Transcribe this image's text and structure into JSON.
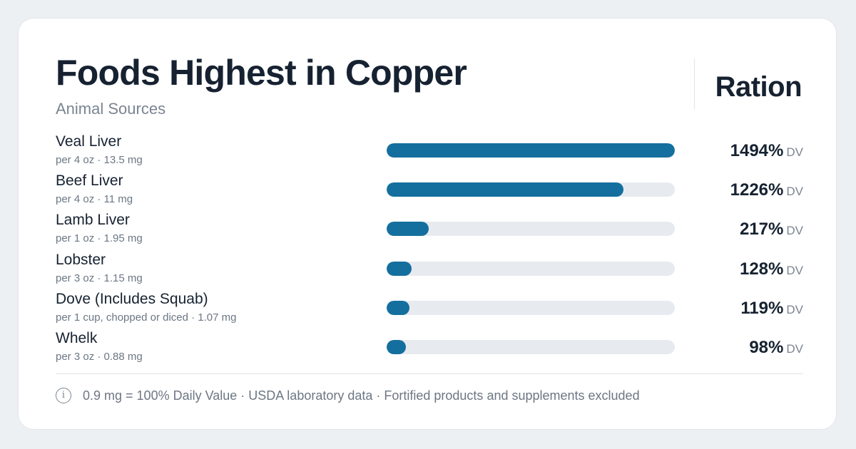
{
  "header": {
    "title": "Foods Highest in Copper",
    "subtitle": "Animal Sources",
    "brand": "Ration"
  },
  "chart_data": {
    "type": "bar",
    "orientation": "horizontal",
    "title": "Foods Highest in Copper",
    "subtitle": "Animal Sources",
    "max_value": 1494,
    "value_unit": "DV",
    "categories": [
      "Veal Liver",
      "Beef Liver",
      "Lamb Liver",
      "Lobster",
      "Dove (Includes Squab)",
      "Whelk"
    ],
    "values": [
      1494,
      1226,
      217,
      128,
      119,
      98
    ],
    "rows": [
      {
        "name": "Veal Liver",
        "detail": "per 4 oz · 13.5 mg",
        "value": 1494,
        "label": "1494%"
      },
      {
        "name": "Beef Liver",
        "detail": "per 4 oz · 11 mg",
        "value": 1226,
        "label": "1226%"
      },
      {
        "name": "Lamb Liver",
        "detail": "per 1 oz · 1.95 mg",
        "value": 217,
        "label": "217%"
      },
      {
        "name": "Lobster",
        "detail": "per 3 oz · 1.15 mg",
        "value": 128,
        "label": "128%"
      },
      {
        "name": "Dove (Includes Squab)",
        "detail": "per 1 cup, chopped or diced · 1.07 mg",
        "value": 119,
        "label": "119%"
      },
      {
        "name": "Whelk",
        "detail": "per 3 oz · 0.88 mg",
        "value": 98,
        "label": "98%"
      }
    ],
    "bar_color": "#146f9e",
    "track_color": "#e7ebf0"
  },
  "footer": {
    "icon": "info-icon",
    "icon_glyph": "i",
    "note": "0.9 mg = 100% Daily Value · USDA laboratory data · Fortified products and supplements excluded"
  }
}
